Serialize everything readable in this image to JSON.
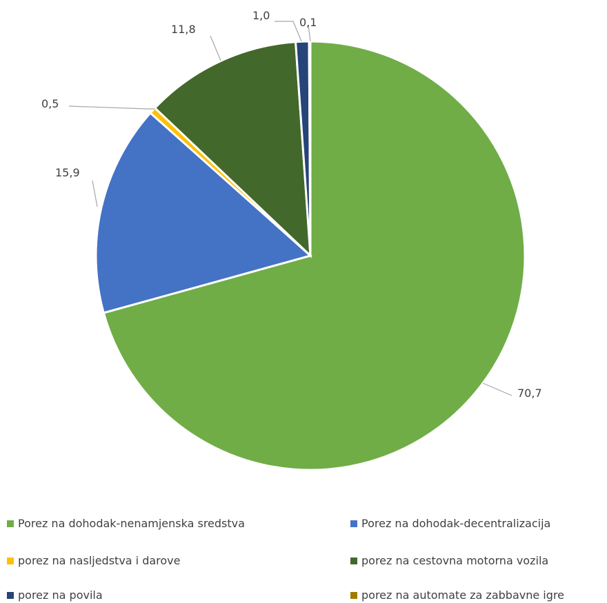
{
  "chart_data": {
    "type": "pie",
    "title": "",
    "categories": [
      "Porez na dohodak-nenamjenska sredstva",
      "Porez na dohodak-decentralizacija",
      "porez na nasljedstva i darove",
      "porez na cestovna motorna vozila",
      "porez na povila",
      "porez na automate za zabbavne igre"
    ],
    "values": [
      70.7,
      15.9,
      0.5,
      11.8,
      1.0,
      0.1
    ],
    "value_labels": [
      "70,7",
      "15,9",
      "0,5",
      "11,8",
      "1,0",
      "0,1"
    ],
    "colors": [
      "#70AD47",
      "#4472C4",
      "#FFC000",
      "#43682B",
      "#264478",
      "#9E7B00"
    ],
    "legend_position": "bottom",
    "start_angle": "12 o'clock",
    "direction": "clockwise"
  },
  "legend": {
    "items": [
      {
        "label": "Porez na dohodak-nenamjenska sredstva",
        "color": "#70AD47"
      },
      {
        "label": "Porez na dohodak-decentralizacija",
        "color": "#4472C4"
      },
      {
        "label": "porez na nasljedstva i darove",
        "color": "#FFC000"
      },
      {
        "label": "porez na cestovna motorna vozila",
        "color": "#43682B"
      },
      {
        "label": "porez na povila",
        "color": "#264478"
      },
      {
        "label": "porez na automate za zabbavne igre",
        "color": "#9E7B00"
      }
    ]
  }
}
